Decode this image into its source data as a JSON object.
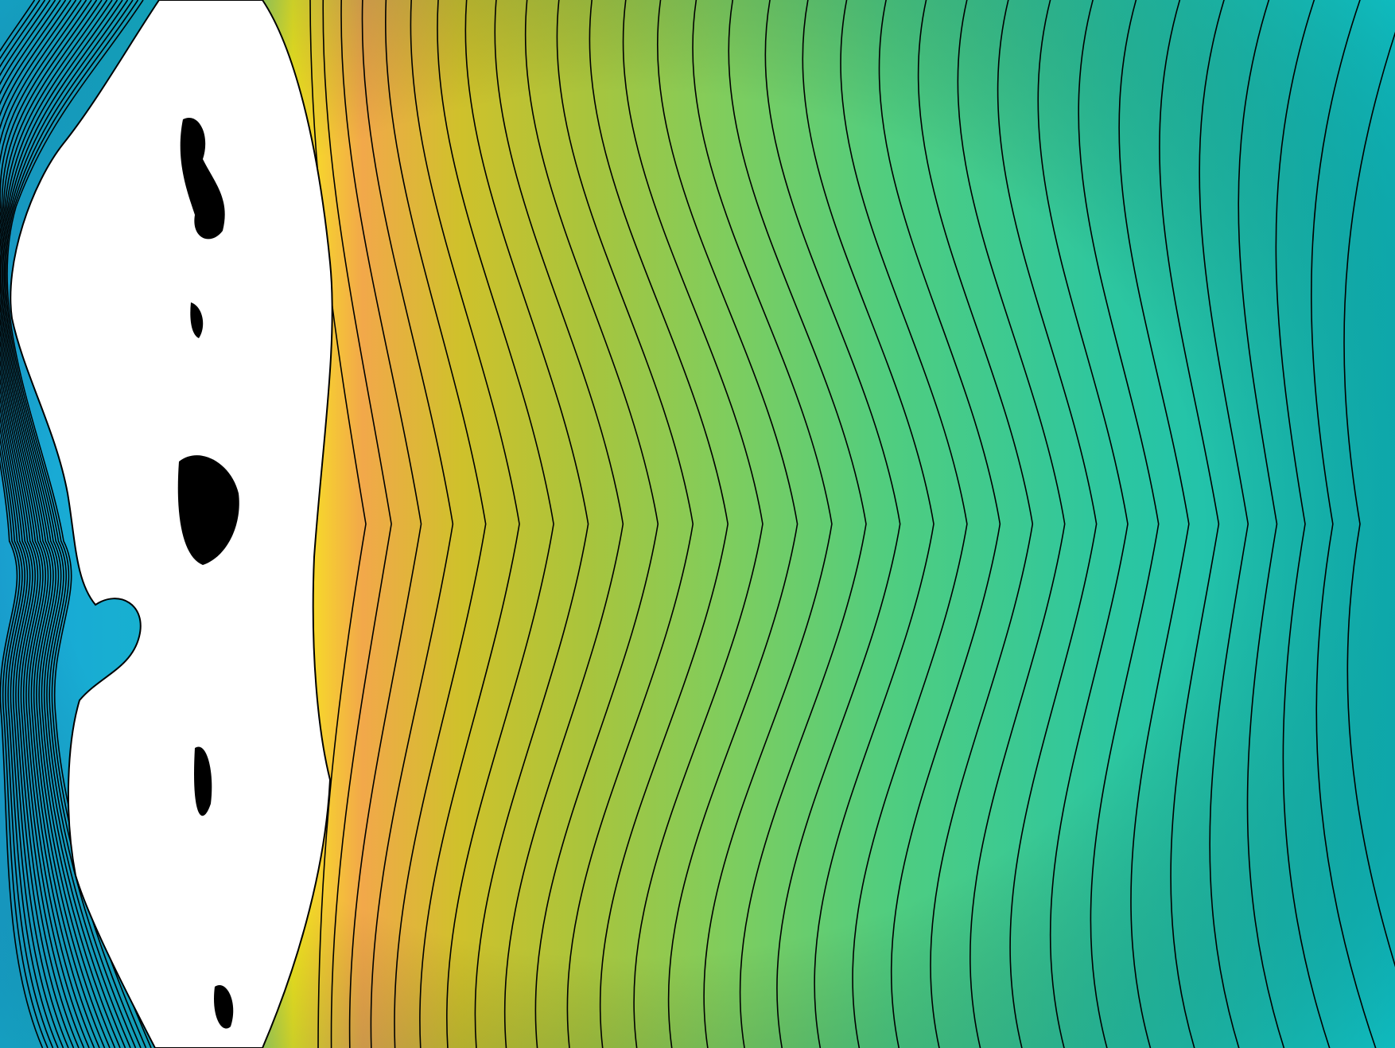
{
  "chart_data": {
    "type": "contour",
    "title": "",
    "xlabel": "",
    "ylabel": "",
    "colormap": {
      "name": "parula",
      "stops": [
        "#1aa6d8",
        "#0fbcc0",
        "#2cc6a0",
        "#4fcd80",
        "#7fcd5d",
        "#a9c43c",
        "#cfc12b",
        "#f2a84a",
        "#f9ec1e"
      ]
    },
    "background_level": 0.12,
    "peak": {
      "name": "ridge",
      "level": 0.78
    },
    "wake": {
      "name": "left-flank",
      "level": 0.02
    },
    "masked_region_color": "#ffffff",
    "contour_line_color": "#000000",
    "filled": true,
    "axes_visible": false,
    "grid": false,
    "colorbar": false
  }
}
